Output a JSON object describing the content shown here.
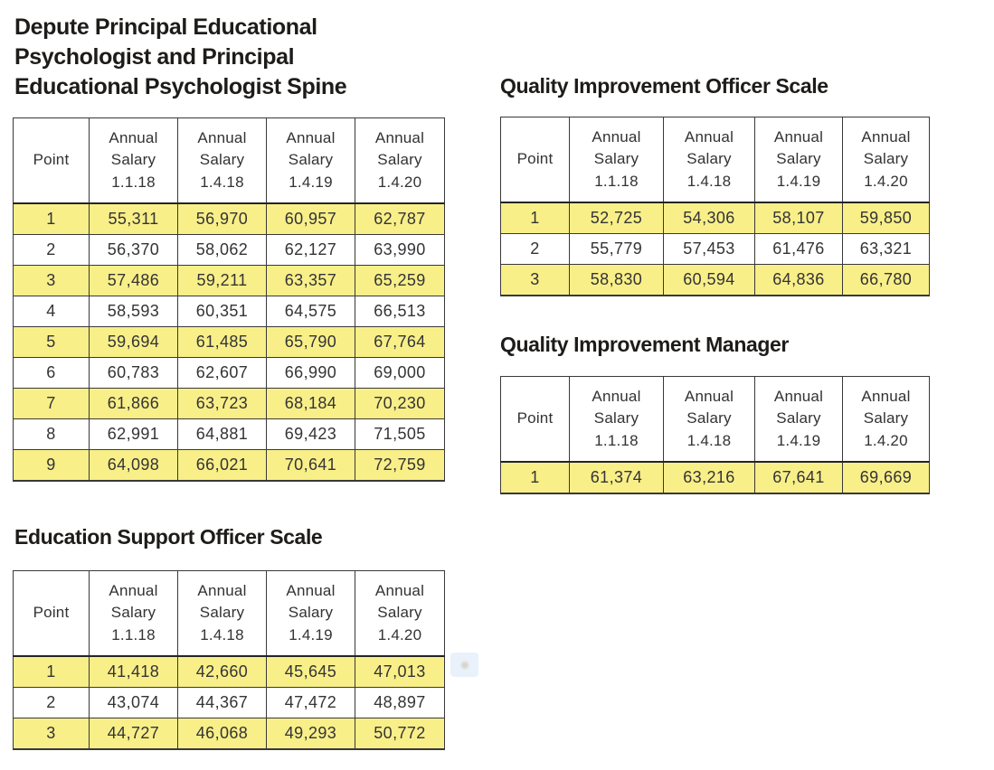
{
  "colors": {
    "highlight_yellow": "#f8ef88",
    "table_border": "#39383a",
    "heading_text": "#1d1c1a",
    "cell_text": "#343336",
    "artifact_blue": "#e9f2fa",
    "artifact_dot": "#d8d5cb"
  },
  "tables": [
    {
      "name": "depute-principal-spine",
      "title": "Depute Principal Educational\nPsychologist and Principal\nEducational Psychologist Spine",
      "headers": [
        "Point",
        "Annual\nSalary\n1.1.18",
        "Annual\nSalary\n1.4.18",
        "Annual\nSalary\n1.4.19",
        "Annual\nSalary\n1.4.20"
      ],
      "rows": [
        [
          "1",
          "55,311",
          "56,970",
          "60,957",
          "62,787"
        ],
        [
          "2",
          "56,370",
          "58,062",
          "62,127",
          "63,990"
        ],
        [
          "3",
          "57,486",
          "59,211",
          "63,357",
          "65,259"
        ],
        [
          "4",
          "58,593",
          "60,351",
          "64,575",
          "66,513"
        ],
        [
          "5",
          "59,694",
          "61,485",
          "65,790",
          "67,764"
        ],
        [
          "6",
          "60,783",
          "62,607",
          "66,990",
          "69,000"
        ],
        [
          "7",
          "61,866",
          "63,723",
          "68,184",
          "70,230"
        ],
        [
          "8",
          "62,991",
          "64,881",
          "69,423",
          "71,505"
        ],
        [
          "9",
          "64,098",
          "66,021",
          "70,641",
          "72,759"
        ]
      ]
    },
    {
      "name": "quality-improvement-officer-scale",
      "title": "Quality Improvement Officer Scale",
      "headers": [
        "Point",
        "Annual\nSalary\n1.1.18",
        "Annual\nSalary\n1.4.18",
        "Annual\nSalary\n1.4.19",
        "Annual\nSalary\n1.4.20"
      ],
      "rows": [
        [
          "1",
          "52,725",
          "54,306",
          "58,107",
          "59,850"
        ],
        [
          "2",
          "55,779",
          "57,453",
          "61,476",
          "63,321"
        ],
        [
          "3",
          "58,830",
          "60,594",
          "64,836",
          "66,780"
        ]
      ]
    },
    {
      "name": "quality-improvement-manager",
      "title": "Quality Improvement Manager",
      "headers": [
        "Point",
        "Annual\nSalary\n1.1.18",
        "Annual\nSalary\n1.4.18",
        "Annual\nSalary\n1.4.19",
        "Annual\nSalary\n1.4.20"
      ],
      "rows": [
        [
          "1",
          "61,374",
          "63,216",
          "67,641",
          "69,669"
        ]
      ]
    },
    {
      "name": "education-support-officer-scale",
      "title": "Education Support Officer Scale",
      "headers": [
        "Point",
        "Annual\nSalary\n1.1.18",
        "Annual\nSalary\n1.4.18",
        "Annual\nSalary\n1.4.19",
        "Annual\nSalary\n1.4.20"
      ],
      "rows": [
        [
          "1",
          "41,418",
          "42,660",
          "45,645",
          "47,013"
        ],
        [
          "2",
          "43,074",
          "44,367",
          "47,472",
          "48,897"
        ],
        [
          "3",
          "44,727",
          "46,068",
          "49,293",
          "50,772"
        ]
      ]
    }
  ]
}
